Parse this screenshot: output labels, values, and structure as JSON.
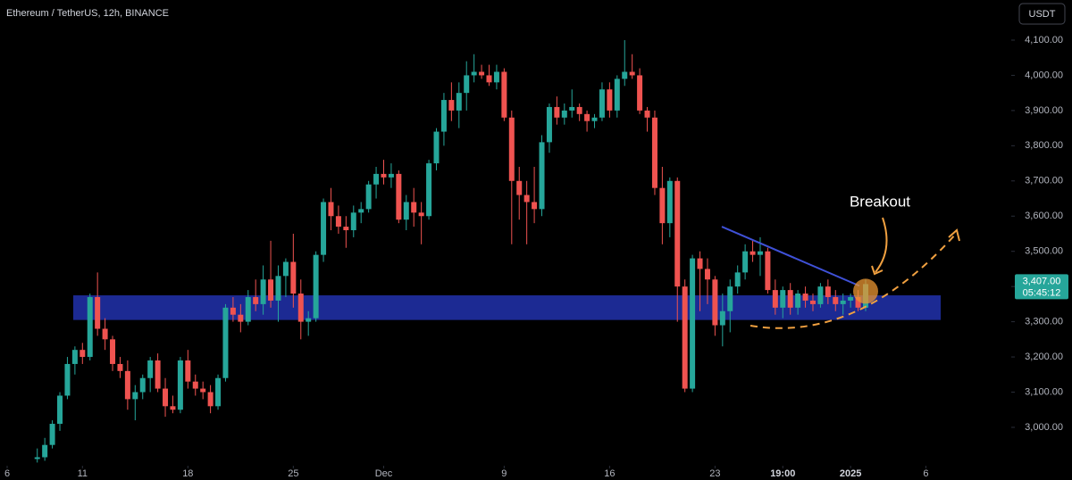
{
  "chart_data": {
    "type": "candlestick",
    "title": "Ethereum / TetherUS, 12h, BINANCE",
    "currency_button": "USDT",
    "annotation": "Breakout",
    "up_color": "#26a69a",
    "down_color": "#ef5350",
    "grid": false,
    "x": [
      4,
      5,
      6,
      7,
      8,
      9,
      10,
      11,
      12,
      13,
      14,
      15,
      16,
      17,
      18,
      19,
      20,
      21,
      22,
      23,
      24,
      25,
      26,
      27,
      28,
      29,
      30,
      31,
      32,
      33,
      34,
      35,
      36,
      37,
      38,
      39,
      40,
      41,
      42,
      43,
      44,
      45,
      46,
      47,
      48,
      49,
      50,
      51,
      52,
      53,
      54,
      55,
      56,
      57,
      58,
      59,
      60,
      61,
      62,
      63,
      64,
      65,
      66,
      67,
      68,
      69,
      70,
      71,
      72,
      73,
      74,
      75,
      76,
      77,
      78,
      79,
      80,
      81,
      82,
      83,
      84,
      85,
      86,
      87,
      88,
      89,
      90,
      91,
      92,
      93,
      94,
      95,
      96,
      97,
      98,
      99,
      100,
      101,
      102,
      103,
      104,
      105,
      106,
      107,
      108,
      109,
      110,
      111,
      112,
      113,
      114
    ],
    "open": [
      2910,
      2915,
      2950,
      3010,
      3090,
      3180,
      3220,
      3200,
      3370,
      3280,
      3250,
      3180,
      3160,
      3080,
      3100,
      3140,
      3190,
      3110,
      3060,
      3050,
      3190,
      3130,
      3110,
      3100,
      3060,
      3140,
      3340,
      3320,
      3300,
      3370,
      3350,
      3420,
      3360,
      3430,
      3470,
      3380,
      3300,
      3310,
      3490,
      3640,
      3600,
      3570,
      3560,
      3610,
      3620,
      3690,
      3720,
      3710,
      3720,
      3590,
      3640,
      3610,
      3600,
      3750,
      3840,
      3930,
      3900,
      3950,
      4000,
      4010,
      4000,
      3980,
      4010,
      3880,
      3700,
      3660,
      3640,
      3620,
      3810,
      3910,
      3880,
      3900,
      3910,
      3890,
      3870,
      3880,
      3960,
      3900,
      3990,
      4010,
      4000,
      3900,
      3880,
      3680,
      3580,
      3700,
      3400,
      3110,
      3480,
      3450,
      3420,
      3290,
      3330,
      3400,
      3440,
      3500,
      3490,
      3500,
      3390,
      3340,
      3390,
      3340,
      3380,
      3360,
      3350,
      3400,
      3370,
      3350,
      3360,
      3370,
      3340
    ],
    "high": [
      2940,
      2970,
      3020,
      3100,
      3200,
      3230,
      3240,
      3380,
      3440,
      3310,
      3260,
      3200,
      3190,
      3120,
      3150,
      3200,
      3210,
      3140,
      3090,
      3200,
      3220,
      3150,
      3130,
      3120,
      3150,
      3350,
      3370,
      3350,
      3390,
      3420,
      3460,
      3530,
      3460,
      3480,
      3550,
      3420,
      3330,
      3500,
      3650,
      3680,
      3630,
      3600,
      3630,
      3640,
      3700,
      3740,
      3760,
      3750,
      3730,
      3660,
      3680,
      3640,
      3760,
      3850,
      3950,
      3980,
      3980,
      4040,
      4060,
      4030,
      4030,
      4030,
      4020,
      3900,
      3740,
      3700,
      3740,
      3830,
      3920,
      3940,
      3920,
      3960,
      3920,
      3900,
      3890,
      3980,
      3980,
      4000,
      4100,
      4060,
      4020,
      3910,
      3900,
      3740,
      3710,
      3710,
      3420,
      3490,
      3500,
      3480,
      3430,
      3380,
      3420,
      3460,
      3520,
      3530,
      3540,
      3510,
      3420,
      3400,
      3410,
      3390,
      3400,
      3380,
      3410,
      3420,
      3390,
      3380,
      3380,
      3390,
      3420
    ],
    "low": [
      2900,
      2905,
      2940,
      2990,
      3080,
      3150,
      3180,
      3190,
      3260,
      3220,
      3160,
      3140,
      3050,
      3020,
      3080,
      3100,
      3100,
      3030,
      3040,
      3040,
      3110,
      3090,
      3080,
      3040,
      3050,
      3130,
      3300,
      3270,
      3290,
      3330,
      3320,
      3340,
      3300,
      3370,
      3340,
      3250,
      3260,
      3300,
      3470,
      3560,
      3550,
      3510,
      3540,
      3580,
      3610,
      3650,
      3690,
      3680,
      3580,
      3560,
      3570,
      3520,
      3590,
      3730,
      3800,
      3870,
      3850,
      3900,
      3980,
      3990,
      3970,
      3960,
      3870,
      3520,
      3590,
      3520,
      3580,
      3600,
      3780,
      3860,
      3860,
      3880,
      3870,
      3840,
      3850,
      3870,
      3880,
      3880,
      3970,
      3990,
      3890,
      3840,
      3660,
      3520,
      3540,
      3300,
      3100,
      3100,
      3330,
      3350,
      3260,
      3230,
      3270,
      3380,
      3420,
      3470,
      3430,
      3380,
      3320,
      3310,
      3320,
      3320,
      3340,
      3330,
      3340,
      3350,
      3330,
      3320,
      3340,
      3330,
      3330
    ],
    "close": [
      2915,
      2950,
      3010,
      3090,
      3180,
      3220,
      3200,
      3370,
      3280,
      3250,
      3180,
      3160,
      3080,
      3100,
      3140,
      3190,
      3110,
      3060,
      3050,
      3190,
      3130,
      3110,
      3100,
      3060,
      3140,
      3340,
      3320,
      3300,
      3370,
      3350,
      3420,
      3360,
      3430,
      3470,
      3380,
      3300,
      3310,
      3490,
      3640,
      3600,
      3570,
      3560,
      3610,
      3620,
      3690,
      3720,
      3710,
      3720,
      3590,
      3640,
      3610,
      3600,
      3750,
      3840,
      3930,
      3900,
      3950,
      4000,
      4010,
      4000,
      3980,
      4010,
      3880,
      3700,
      3660,
      3640,
      3620,
      3810,
      3910,
      3880,
      3900,
      3910,
      3890,
      3870,
      3880,
      3960,
      3900,
      3990,
      4010,
      4000,
      3900,
      3880,
      3680,
      3580,
      3700,
      3400,
      3110,
      3480,
      3450,
      3420,
      3290,
      3330,
      3400,
      3440,
      3500,
      3490,
      3500,
      3390,
      3340,
      3390,
      3340,
      3380,
      3360,
      3350,
      3400,
      3370,
      3350,
      3360,
      3370,
      3340,
      3407
    ],
    "xlim": [
      -0.95,
      133.1
    ],
    "xticks": [
      {
        "value": 0,
        "label": "6"
      },
      {
        "value": 10,
        "label": "11"
      },
      {
        "value": 24,
        "label": "18"
      },
      {
        "value": 38,
        "label": "25"
      },
      {
        "value": 50,
        "label": "Dec"
      },
      {
        "value": 66,
        "label": "9"
      },
      {
        "value": 80,
        "label": "16"
      },
      {
        "value": 94,
        "label": "23"
      },
      {
        "value": 103,
        "label": "19:00"
      },
      {
        "value": 112,
        "label": "2025"
      },
      {
        "value": 122,
        "label": "6"
      }
    ],
    "ylim": [
      2896,
      4214
    ],
    "yticks": [
      {
        "value": 3000,
        "label": "3,000.00"
      },
      {
        "value": 3100,
        "label": "3,100.00"
      },
      {
        "value": 3200,
        "label": "3,200.00"
      },
      {
        "value": 3300,
        "label": "3,300.00"
      },
      {
        "value": 3400,
        "label": "3,400.00"
      },
      {
        "value": 3500,
        "label": "3,500.00"
      },
      {
        "value": 3600,
        "label": "3,600.00"
      },
      {
        "value": 3700,
        "label": "3,700.00"
      },
      {
        "value": 3800,
        "label": "3,800.00"
      },
      {
        "value": 3900,
        "label": "3,900.00"
      },
      {
        "value": 4000,
        "label": "4,000.00"
      },
      {
        "value": 4100,
        "label": "4,100.00"
      }
    ],
    "zone": {
      "low": 3305,
      "high": 3375,
      "color": "#1f2fa3"
    },
    "trendline": {
      "values": [
        3570,
        3402
      ],
      "color": "#3f51d8"
    },
    "price_label": {
      "value": 3407,
      "label": "3,407.00",
      "countdown": "05:45:12"
    }
  }
}
